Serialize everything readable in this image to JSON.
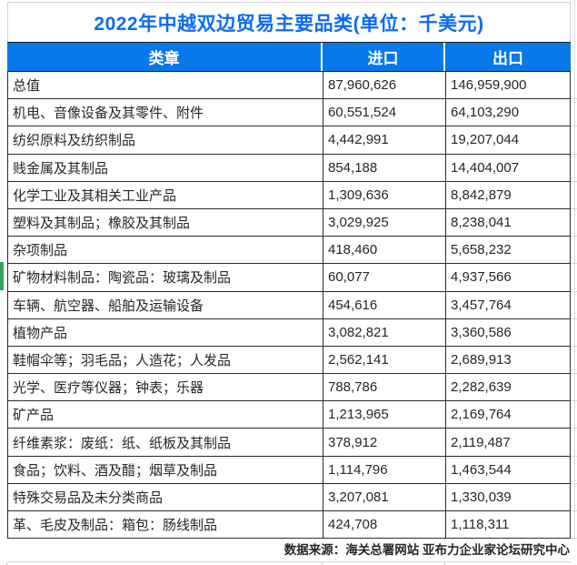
{
  "title": "2022年中越双边贸易主要品类(单位：千美元)",
  "table": {
    "columns": [
      "类章",
      "进口",
      "出口"
    ],
    "rows": [
      [
        "总值",
        "87,960,626",
        "146,959,900"
      ],
      [
        "机电、音像设备及其零件、附件",
        "60,551,524",
        "64,103,290"
      ],
      [
        "纺织原料及纺织制品",
        "4,442,991",
        "19,207,044"
      ],
      [
        "贱金属及其制品",
        "854,188",
        "14,404,007"
      ],
      [
        "化学工业及其相关工业产品",
        "1,309,636",
        "8,842,879"
      ],
      [
        "塑料及其制品；橡胶及其制品",
        "3,029,925",
        "8,238,041"
      ],
      [
        "杂项制品",
        "418,460",
        "5,658,232"
      ],
      [
        "矿物材料制品：陶瓷品：玻璃及制品",
        "60,077",
        "4,937,566"
      ],
      [
        "车辆、航空器、船舶及运输设备",
        "454,616",
        "3,457,764"
      ],
      [
        "植物产品",
        "3,082,821",
        "3,360,586"
      ],
      [
        "鞋帽伞等；羽毛品；人造花；人发品",
        "2,562,141",
        "2,689,913"
      ],
      [
        "光学、医疗等仪器；钟表；乐器",
        "788,786",
        "2,282,639"
      ],
      [
        "矿产品",
        "1,213,965",
        "2,169,764"
      ],
      [
        "纤维素浆：废纸：纸、纸板及其制品",
        "378,912",
        "2,119,487"
      ],
      [
        "食品；饮料、酒及醋；烟草及制品",
        "1,114,796",
        "1,463,544"
      ],
      [
        "特殊交易品及未分类商品",
        "3,207,081",
        "1,330,039"
      ],
      [
        "革、毛皮及制品：箱包：肠线制品",
        "424,708",
        "1,118,311"
      ]
    ]
  },
  "footer": {
    "source": "数据来源：海关总署网站 亚布力企业家论坛研究中心"
  },
  "colors": {
    "title_blue": "#0b6cf0",
    "header_blue": "#0678ec",
    "border_dark": "#2b2b2b",
    "grid_light": "#d2d2da",
    "green_marker": "#2fa85c"
  },
  "chart_data": {
    "type": "table",
    "title": "2022年中越双边贸易主要品类(单位：千美元)",
    "columns": [
      "类章",
      "进口",
      "出口"
    ],
    "categories": [
      "总值",
      "机电、音像设备及其零件、附件",
      "纺织原料及纺织制品",
      "贱金属及其制品",
      "化学工业及其相关工业产品",
      "塑料及其制品；橡胶及其制品",
      "杂项制品",
      "矿物材料制品：陶瓷品：玻璃及制品",
      "车辆、航空器、船舶及运输设备",
      "植物产品",
      "鞋帽伞等；羽毛品；人造花；人发品",
      "光学、医疗等仪器；钟表；乐器",
      "矿产品",
      "纤维素浆：废纸：纸、纸板及其制品",
      "食品；饮料、酒及醋；烟草及制品",
      "特殊交易品及未分类商品",
      "革、毛皮及制品：箱包：肠线制品"
    ],
    "series": [
      {
        "name": "进口",
        "values": [
          87960626,
          60551524,
          4442991,
          854188,
          1309636,
          3029925,
          418460,
          60077,
          454616,
          3082821,
          2562141,
          788786,
          1213965,
          378912,
          1114796,
          3207081,
          424708
        ]
      },
      {
        "name": "出口",
        "values": [
          146959900,
          64103290,
          19207044,
          14404007,
          8842879,
          8238041,
          5658232,
          4937566,
          3457764,
          3360586,
          2689913,
          2282639,
          2169764,
          2119487,
          1463544,
          1330039,
          1118311
        ]
      }
    ],
    "unit": "千美元",
    "source_note": "数据来源：海关总署网站 亚布力企业家论坛研究中心"
  }
}
